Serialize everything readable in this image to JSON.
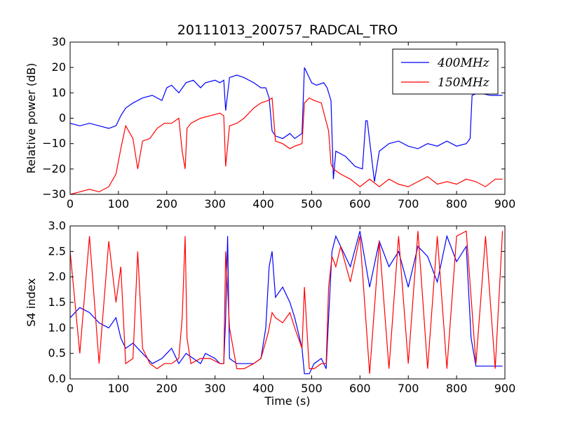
{
  "chart_data": {
    "title": "20111013_200757_RADCAL_TRO",
    "xlabel": "Time (s)",
    "xlim": [
      0,
      900
    ],
    "xticks": [
      "0",
      "100",
      "200",
      "300",
      "400",
      "500",
      "600",
      "700",
      "800",
      "900"
    ],
    "colors": {
      "s400": "#0000ff",
      "s150": "#ff0000"
    },
    "panels": [
      {
        "type": "line",
        "ylabel": "Relative power (dB)",
        "ylim": [
          -30,
          30
        ],
        "yticks": [
          "−30",
          "−20",
          "−10",
          "0",
          "10",
          "20",
          "30"
        ],
        "legend": {
          "position": "upper-right",
          "entries": [
            "400MHz",
            "150MHz"
          ]
        },
        "series": [
          {
            "name": "400MHz",
            "x": [
              0,
              20,
              40,
              60,
              80,
              95,
              105,
              115,
              130,
              150,
              170,
              190,
              200,
              210,
              225,
              240,
              255,
              270,
              280,
              300,
              310,
              318,
              322,
              330,
              345,
              360,
              380,
              395,
              405,
              412,
              418,
              425,
              440,
              455,
              465,
              480,
              485,
              495,
              500,
              510,
              525,
              532,
              540,
              545,
              550,
              570,
              590,
              605,
              612,
              615,
              630,
              640,
              660,
              680,
              700,
              720,
              740,
              760,
              780,
              800,
              820,
              828,
              832,
              845,
              870,
              895
            ],
            "y": [
              -2,
              -3,
              -2,
              -3,
              -4,
              -3,
              1,
              4,
              6,
              8,
              9,
              7,
              12,
              13,
              10,
              14,
              15,
              12,
              14,
              15,
              14,
              15,
              3,
              16,
              17,
              16,
              14,
              12,
              12,
              8,
              -5,
              -7,
              -8,
              -6,
              -8,
              -6,
              20,
              16,
              14,
              13,
              14,
              12,
              7,
              -24,
              -13,
              -15,
              -19,
              -20,
              -1,
              -1,
              -25,
              -13,
              -10,
              -9,
              -11,
              -12,
              -10,
              -11,
              -9,
              -11,
              -10,
              -8,
              9,
              10,
              9,
              9
            ]
          },
          {
            "name": "150MHz",
            "x": [
              0,
              20,
              40,
              60,
              80,
              95,
              105,
              115,
              130,
              140,
              150,
              165,
              180,
              195,
              210,
              225,
              232,
              238,
              242,
              250,
              270,
              290,
              310,
              318,
              322,
              330,
              345,
              360,
              380,
              395,
              410,
              418,
              425,
              440,
              455,
              465,
              480,
              485,
              495,
              505,
              520,
              535,
              540,
              545,
              560,
              580,
              600,
              620,
              640,
              660,
              680,
              700,
              720,
              740,
              760,
              780,
              800,
              820,
              840,
              860,
              880,
              895
            ],
            "y": [
              -30,
              -29,
              -28,
              -29,
              -27,
              -22,
              -12,
              -3,
              -8,
              -20,
              -9,
              -8,
              -4,
              -2,
              -2,
              0,
              -13,
              -20,
              -4,
              -2,
              0,
              1,
              2,
              1,
              -19,
              -3,
              -2,
              0,
              4,
              6,
              7,
              8,
              -9,
              -10,
              -12,
              -11,
              -10,
              6,
              8,
              7,
              6,
              -5,
              -18,
              -20,
              -22,
              -24,
              -27,
              -24,
              -27,
              -24,
              -26,
              -27,
              -25,
              -23,
              -26,
              -25,
              -26,
              -24,
              -25,
              -27,
              -24,
              -24
            ]
          }
        ]
      },
      {
        "type": "line",
        "ylabel": "S4 index",
        "ylim": [
          0,
          3
        ],
        "yticks": [
          "0.0",
          "0.5",
          "1.0",
          "1.5",
          "2.0",
          "2.5",
          "3.0"
        ],
        "series": [
          {
            "name": "400MHz",
            "x": [
              0,
              20,
              40,
              60,
              80,
              95,
              105,
              115,
              130,
              150,
              170,
              190,
              200,
              210,
              225,
              240,
              255,
              270,
              280,
              300,
              310,
              318,
              322,
              326,
              330,
              345,
              360,
              380,
              395,
              405,
              412,
              418,
              425,
              440,
              455,
              465,
              480,
              485,
              495,
              505,
              520,
              530,
              535,
              542,
              550,
              560,
              580,
              600,
              620,
              640,
              660,
              680,
              700,
              720,
              740,
              760,
              780,
              800,
              820,
              830,
              840,
              860,
              880,
              895
            ],
            "y": [
              1.2,
              1.4,
              1.3,
              1.1,
              1.0,
              1.2,
              0.8,
              0.6,
              0.7,
              0.5,
              0.3,
              0.4,
              0.5,
              0.6,
              0.3,
              0.5,
              0.4,
              0.3,
              0.5,
              0.4,
              0.3,
              0.3,
              1.2,
              2.8,
              0.4,
              0.3,
              0.3,
              0.3,
              0.4,
              1.0,
              2.2,
              2.5,
              1.6,
              1.8,
              1.5,
              1.2,
              0.6,
              0.1,
              0.1,
              0.3,
              0.4,
              0.2,
              1.2,
              2.5,
              2.8,
              2.6,
              2.2,
              2.9,
              1.8,
              2.7,
              2.2,
              2.5,
              1.8,
              2.6,
              2.4,
              1.9,
              2.8,
              2.3,
              2.6,
              0.8,
              0.25,
              0.25,
              0.25,
              0.25
            ]
          },
          {
            "name": "150MHz",
            "x": [
              0,
              20,
              40,
              60,
              80,
              95,
              105,
              115,
              130,
              140,
              150,
              165,
              180,
              195,
              210,
              225,
              232,
              238,
              242,
              250,
              270,
              290,
              310,
              318,
              322,
              330,
              345,
              360,
              380,
              395,
              410,
              418,
              425,
              440,
              455,
              465,
              480,
              485,
              495,
              505,
              520,
              530,
              535,
              542,
              550,
              560,
              580,
              600,
              620,
              640,
              660,
              680,
              700,
              720,
              740,
              760,
              780,
              800,
              820,
              840,
              860,
              880,
              895
            ],
            "y": [
              2.5,
              0.5,
              2.8,
              0.3,
              2.7,
              1.5,
              2.2,
              0.3,
              0.4,
              2.5,
              0.6,
              0.3,
              0.2,
              0.3,
              0.3,
              0.4,
              1.2,
              2.8,
              0.8,
              0.3,
              0.4,
              0.4,
              0.3,
              0.3,
              2.5,
              1.0,
              0.2,
              0.2,
              0.3,
              0.4,
              0.9,
              1.3,
              1.2,
              1.1,
              1.3,
              1.0,
              0.6,
              1.8,
              0.2,
              0.2,
              0.3,
              0.3,
              1.8,
              2.4,
              2.2,
              2.6,
              1.9,
              2.8,
              0.1,
              2.7,
              0.2,
              2.8,
              0.3,
              2.9,
              0.2,
              2.8,
              0.2,
              2.8,
              2.9,
              0.3,
              2.8,
              0.2,
              2.9
            ]
          }
        ]
      }
    ]
  }
}
